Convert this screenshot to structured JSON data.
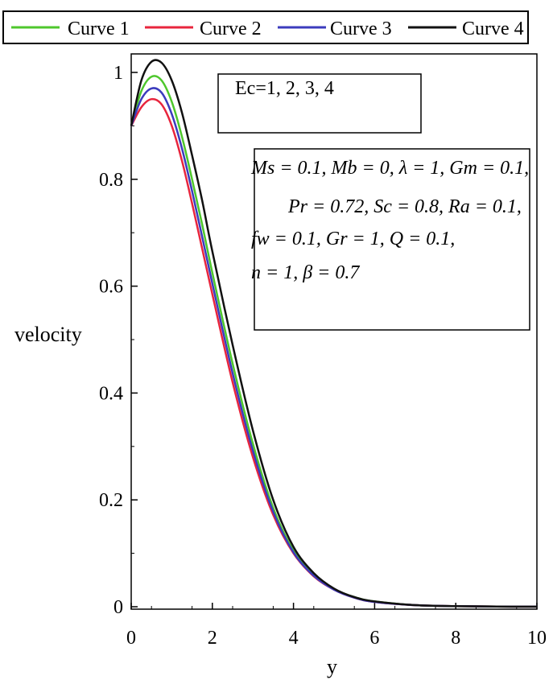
{
  "chart_data": {
    "type": "line",
    "xlabel": "y",
    "ylabel": "velocity",
    "xlim": [
      0,
      10
    ],
    "ylim": [
      0,
      1.02
    ],
    "x_ticks": [
      "0",
      "2",
      "4",
      "6",
      "8",
      "10"
    ],
    "y_ticks": [
      "0",
      "0.2",
      "0.4",
      "0.6",
      "0.8",
      "1"
    ],
    "legend_position": "top",
    "x": [
      0,
      0.25,
      0.5,
      0.75,
      1,
      1.25,
      1.5,
      1.75,
      2,
      2.5,
      3,
      3.5,
      4,
      4.5,
      5,
      5.5,
      6,
      7,
      8,
      9,
      10
    ],
    "series": [
      {
        "name": "Curve 1",
        "color": "#4ec72c",
        "values": [
          0.9,
          0.965,
          0.992,
          0.985,
          0.945,
          0.88,
          0.8,
          0.715,
          0.625,
          0.455,
          0.305,
          0.185,
          0.105,
          0.06,
          0.033,
          0.018,
          0.01,
          0.003,
          0.001,
          0.0003,
          0.0001
        ]
      },
      {
        "name": "Curve 2",
        "color": "#e8253d",
        "values": [
          0.9,
          0.935,
          0.95,
          0.94,
          0.9,
          0.835,
          0.755,
          0.67,
          0.585,
          0.42,
          0.28,
          0.172,
          0.1,
          0.057,
          0.032,
          0.017,
          0.009,
          0.003,
          0.001,
          0.0003,
          0.0001
        ]
      },
      {
        "name": "Curve 3",
        "color": "#3b3bbd",
        "values": [
          0.9,
          0.95,
          0.97,
          0.962,
          0.922,
          0.858,
          0.778,
          0.692,
          0.605,
          0.437,
          0.292,
          0.178,
          0.102,
          0.058,
          0.032,
          0.017,
          0.009,
          0.003,
          0.001,
          0.0003,
          0.0001
        ]
      },
      {
        "name": "Curve 4",
        "color": "#111111",
        "values": [
          0.9,
          0.985,
          1.02,
          1.018,
          0.985,
          0.925,
          0.845,
          0.76,
          0.665,
          0.49,
          0.33,
          0.2,
          0.112,
          0.063,
          0.034,
          0.018,
          0.01,
          0.003,
          0.001,
          0.0003,
          0.0001
        ]
      }
    ],
    "annotations": {
      "ec": "Ec=1, 2, 3, 4",
      "params": [
        "Ms = 0.1, Mb = 0, λ = 1, Gm = 0.1,",
        "Pr = 0.72, Sc = 0.8, Ra = 0.1,",
        "fw = 0.1, Gr = 1, Q = 0.1,",
        "n = 1, β = 0.7"
      ]
    }
  }
}
